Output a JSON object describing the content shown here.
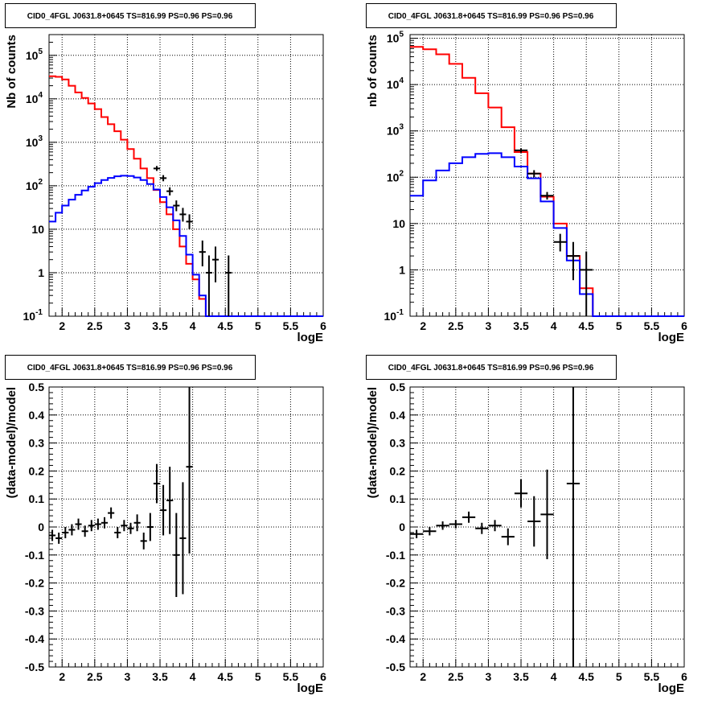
{
  "colors": {
    "model_total": "#ff0000",
    "model_source": "#0000ff",
    "data": "#000000",
    "grid": "#000000"
  },
  "chart_data": [
    {
      "type": "line",
      "title": "CID0_4FGL J0631.8+0645 TS=816.99 PS=0.96 PS=0.96",
      "xlabel": "logE",
      "ylabel": "Nb of counts",
      "xlim": [
        1.8,
        6.0
      ],
      "ylim": [
        0.1,
        300000
      ],
      "yscale": "log",
      "grid": true,
      "x_ticks": [
        "2",
        "2.5",
        "3",
        "3.5",
        "4",
        "4.5",
        "5",
        "5.5",
        "6"
      ],
      "y_ticks": [
        "10^-1",
        "1",
        "10",
        "10^2",
        "10^3",
        "10^4",
        "10^5"
      ],
      "bin_edges": [
        1.8,
        1.9,
        2.0,
        2.1,
        2.2,
        2.3,
        2.4,
        2.5,
        2.6,
        2.7,
        2.8,
        2.9,
        3.0,
        3.1,
        3.2,
        3.3,
        3.4,
        3.5,
        3.6,
        3.7,
        3.8,
        3.9,
        4.0,
        4.1,
        4.2,
        4.3,
        4.4,
        4.5,
        4.6,
        4.7,
        4.8,
        4.9,
        5.0,
        5.1,
        5.2,
        5.3,
        5.4,
        5.5,
        5.6,
        5.7,
        5.8,
        5.9,
        6.0
      ],
      "series": [
        {
          "values": [
            33000,
            32000,
            28000,
            20000,
            14000,
            10500,
            7800,
            5800,
            3800,
            2600,
            1800,
            1150,
            700,
            420,
            250,
            150,
            80,
            42,
            22,
            10,
            4,
            1.6,
            0.7,
            0.25,
            0.1,
            0.1,
            0.1,
            0.1,
            0.1,
            0.1,
            0.1,
            0.1,
            0.1,
            0.1,
            0.1,
            0.1,
            0.1,
            0.1,
            0.1,
            0.1,
            0.1,
            0.1
          ]
        },
        {
          "values": [
            15,
            24,
            35,
            48,
            62,
            78,
            95,
            115,
            135,
            152,
            165,
            170,
            168,
            155,
            135,
            110,
            82,
            55,
            32,
            16,
            7,
            2.6,
            0.9,
            0.3,
            0.1,
            0.1,
            0.1,
            0.1,
            0.1,
            0.1,
            0.1,
            0.1,
            0.1,
            0.1,
            0.1,
            0.1,
            0.1,
            0.1,
            0.1,
            0.1,
            0.1,
            0.1
          ]
        }
      ],
      "data_points": [
        {
          "x": 3.45,
          "y": 250,
          "lo": 220,
          "hi": 285
        },
        {
          "x": 3.55,
          "y": 150,
          "lo": 127,
          "hi": 176
        },
        {
          "x": 3.65,
          "y": 75,
          "lo": 60,
          "hi": 92
        },
        {
          "x": 3.75,
          "y": 35,
          "lo": 26,
          "hi": 46
        },
        {
          "x": 3.85,
          "y": 22,
          "lo": 15,
          "hi": 31
        },
        {
          "x": 3.95,
          "y": 15,
          "lo": 10,
          "hi": 22
        },
        {
          "x": 4.15,
          "y": 3,
          "lo": 1.4,
          "hi": 5.5
        },
        {
          "x": 4.25,
          "y": 1,
          "lo": 0.1,
          "hi": 2.5
        },
        {
          "x": 4.35,
          "y": 2,
          "lo": 0.6,
          "hi": 4
        },
        {
          "x": 4.55,
          "y": 1,
          "lo": 0.1,
          "hi": 2.5
        }
      ]
    },
    {
      "type": "line",
      "title": "CID0_4FGL J0631.8+0645 TS=816.99 PS=0.96 PS=0.96",
      "xlabel": "logE",
      "ylabel": "nb of counts",
      "xlim": [
        1.8,
        6.0
      ],
      "ylim": [
        0.1,
        120000
      ],
      "yscale": "log",
      "grid": true,
      "x_ticks": [
        "2",
        "2.5",
        "3",
        "3.5",
        "4",
        "4.5",
        "5",
        "5.5",
        "6"
      ],
      "y_ticks": [
        "10^-1",
        "1",
        "10",
        "10^2",
        "10^3",
        "10^4",
        "10^5"
      ],
      "bin_edges": [
        1.8,
        2.0,
        2.2,
        2.4,
        2.6,
        2.8,
        3.0,
        3.2,
        3.4,
        3.6,
        3.8,
        4.0,
        4.2,
        4.4,
        4.6,
        4.8,
        5.0,
        5.2,
        5.4,
        5.6,
        5.8,
        6.0
      ],
      "series": [
        {
          "values": [
            65000,
            58000,
            45000,
            28000,
            14000,
            6500,
            3200,
            1200,
            350,
            120,
            38,
            10,
            2,
            0.4,
            0.1,
            0.1,
            0.1,
            0.1,
            0.1,
            0.1,
            0.1
          ]
        },
        {
          "values": [
            40,
            85,
            140,
            200,
            270,
            320,
            330,
            270,
            170,
            95,
            30,
            8,
            1.6,
            0.3,
            0.1,
            0.1,
            0.1,
            0.1,
            0.1,
            0.1,
            0.1
          ]
        }
      ],
      "data_points": [
        {
          "x": 3.5,
          "y": 380,
          "lo": 340,
          "hi": 420
        },
        {
          "x": 3.7,
          "y": 120,
          "lo": 100,
          "hi": 142
        },
        {
          "x": 3.9,
          "y": 40,
          "lo": 33,
          "hi": 48
        },
        {
          "x": 4.1,
          "y": 4,
          "lo": 2.5,
          "hi": 6
        },
        {
          "x": 4.3,
          "y": 2,
          "lo": 0.6,
          "hi": 4
        },
        {
          "x": 4.5,
          "y": 1,
          "lo": 0.1,
          "hi": 2.5
        }
      ]
    },
    {
      "type": "scatter",
      "title": "CID0_4FGL J0631.8+0645 TS=816.99 PS=0.96 PS=0.96",
      "xlabel": "logE",
      "ylabel": "(data-model)/model",
      "xlim": [
        1.8,
        6.0
      ],
      "ylim": [
        -0.5,
        0.5
      ],
      "grid": true,
      "x_ticks": [
        "2",
        "2.5",
        "3",
        "3.5",
        "4",
        "4.5",
        "5",
        "5.5",
        "6"
      ],
      "y_ticks": [
        "-0.5",
        "-0.4",
        "-0.3",
        "-0.2",
        "-0.1",
        "0",
        "0.1",
        "0.2",
        "0.3",
        "0.4",
        "0.5"
      ],
      "bin_width": 0.1,
      "points": [
        {
          "x": 1.85,
          "y": -0.03,
          "err": 0.02
        },
        {
          "x": 1.95,
          "y": -0.04,
          "err": 0.02
        },
        {
          "x": 2.05,
          "y": -0.02,
          "err": 0.02
        },
        {
          "x": 2.15,
          "y": -0.01,
          "err": 0.02
        },
        {
          "x": 2.25,
          "y": 0.01,
          "err": 0.02
        },
        {
          "x": 2.35,
          "y": -0.015,
          "err": 0.02
        },
        {
          "x": 2.45,
          "y": 0.005,
          "err": 0.02
        },
        {
          "x": 2.55,
          "y": 0.01,
          "err": 0.02
        },
        {
          "x": 2.65,
          "y": 0.015,
          "err": 0.02
        },
        {
          "x": 2.75,
          "y": 0.05,
          "err": 0.02
        },
        {
          "x": 2.85,
          "y": -0.02,
          "err": 0.02
        },
        {
          "x": 2.95,
          "y": 0.005,
          "err": 0.02
        },
        {
          "x": 3.05,
          "y": -0.005,
          "err": 0.02
        },
        {
          "x": 3.15,
          "y": 0.015,
          "err": 0.03
        },
        {
          "x": 3.25,
          "y": -0.05,
          "err": 0.03
        },
        {
          "x": 3.35,
          "y": 0.0,
          "err": 0.05
        },
        {
          "x": 3.45,
          "y": 0.155,
          "err": 0.07
        },
        {
          "x": 3.55,
          "y": 0.06,
          "err": 0.09
        },
        {
          "x": 3.65,
          "y": 0.095,
          "err": 0.12
        },
        {
          "x": 3.75,
          "y": -0.1,
          "err": 0.15
        },
        {
          "x": 3.85,
          "y": -0.04,
          "err": 0.2
        },
        {
          "x": 3.95,
          "y": 0.215,
          "err": 0.31
        }
      ]
    },
    {
      "type": "scatter",
      "title": "CID0_4FGL J0631.8+0645 TS=816.99 PS=0.96 PS=0.96",
      "xlabel": "logE",
      "ylabel": "(data-model)/model",
      "xlim": [
        1.8,
        6.0
      ],
      "ylim": [
        -0.5,
        0.5
      ],
      "grid": true,
      "x_ticks": [
        "2",
        "2.5",
        "3",
        "3.5",
        "4",
        "4.5",
        "5",
        "5.5",
        "6"
      ],
      "y_ticks": [
        "-0.5",
        "-0.4",
        "-0.3",
        "-0.2",
        "-0.1",
        "0",
        "0.1",
        "0.2",
        "0.3",
        "0.4",
        "0.5"
      ],
      "bin_width": 0.2,
      "points": [
        {
          "x": 1.9,
          "y": -0.025,
          "err": 0.015
        },
        {
          "x": 2.1,
          "y": -0.015,
          "err": 0.015
        },
        {
          "x": 2.3,
          "y": 0.005,
          "err": 0.015
        },
        {
          "x": 2.5,
          "y": 0.01,
          "err": 0.015
        },
        {
          "x": 2.7,
          "y": 0.035,
          "err": 0.02
        },
        {
          "x": 2.9,
          "y": -0.005,
          "err": 0.02
        },
        {
          "x": 3.1,
          "y": 0.005,
          "err": 0.02
        },
        {
          "x": 3.3,
          "y": -0.035,
          "err": 0.03
        },
        {
          "x": 3.5,
          "y": 0.12,
          "err": 0.05
        },
        {
          "x": 3.7,
          "y": 0.02,
          "err": 0.09
        },
        {
          "x": 3.9,
          "y": 0.045,
          "err": 0.16
        },
        {
          "x": 4.3,
          "y": 0.155,
          "err": 0.7
        }
      ]
    }
  ]
}
